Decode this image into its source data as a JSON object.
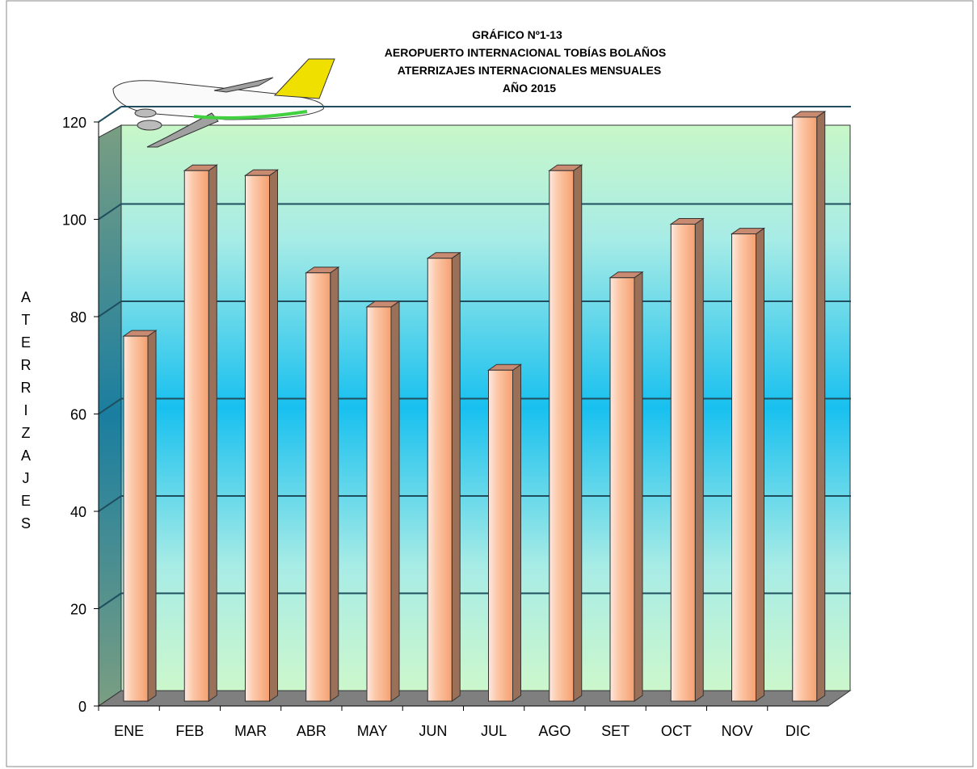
{
  "chart_data": {
    "type": "bar3d",
    "title": [
      "GRÁFICO Nº1-13",
      "AEROPUERTO  INTERNACIONAL  TOBÍAS BOLAÑOS",
      "ATERRIZAJES INTERNACIONALES MENSUALES",
      "AÑO 2015"
    ],
    "y_label": "ATERRIZAJES",
    "categories": [
      "ENE",
      "FEB",
      "MAR",
      "ABR",
      "MAY",
      "JUN",
      "JUL",
      "AGO",
      "SET",
      "OCT",
      "NOV",
      "DIC"
    ],
    "values": [
      76,
      110,
      109,
      89,
      82,
      92,
      69,
      110,
      88,
      99,
      97,
      121
    ],
    "color": "#f5a878",
    "ylim": [
      0,
      120
    ],
    "yticks": [
      0,
      20,
      40,
      60,
      80,
      100,
      120
    ],
    "grid": true
  }
}
